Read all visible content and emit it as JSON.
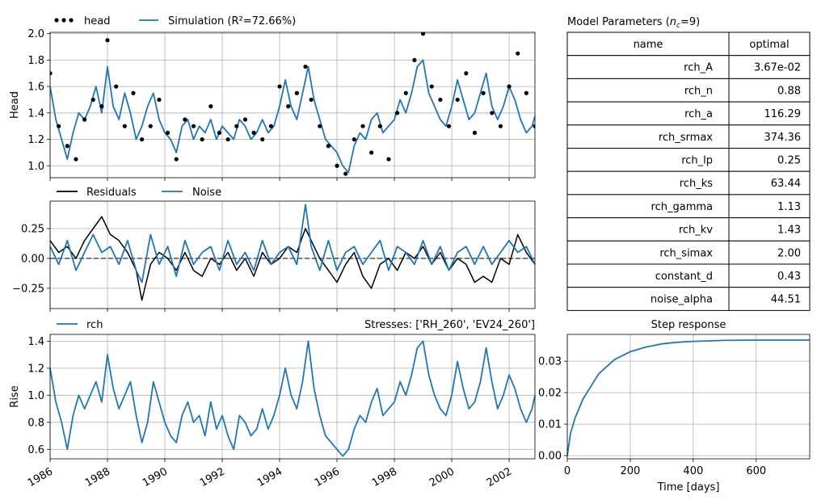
{
  "colors": {
    "head": "#000000",
    "simulation": "#1f77b4",
    "residuals": "#000000",
    "noise": "#1f77b4",
    "rch": "#1f77b4",
    "step": "#1f77b4",
    "grid": "#b0b0b0"
  },
  "chart_data": [
    {
      "id": "head",
      "type": "line",
      "ylabel": "Head",
      "ylim": [
        0.91,
        2.01
      ],
      "yticks": [
        "1.0",
        "1.2",
        "1.4",
        "1.6",
        "1.8",
        "2.0"
      ],
      "grid": true,
      "legend": {
        "position": "top-left",
        "entries": [
          "head",
          "Simulation (R²=72.66%)"
        ]
      },
      "series": [
        {
          "name": "head",
          "style": "markers",
          "x": [
            1986.0,
            1986.3,
            1986.6,
            1986.9,
            1987.2,
            1987.5,
            1987.8,
            1988.0,
            1988.3,
            1988.6,
            1988.9,
            1989.2,
            1989.5,
            1989.8,
            1990.1,
            1990.4,
            1990.7,
            1991.0,
            1991.3,
            1991.6,
            1991.9,
            1992.2,
            1992.5,
            1992.8,
            1993.1,
            1993.4,
            1993.7,
            1994.0,
            1994.3,
            1994.6,
            1994.9,
            1995.1,
            1995.4,
            1995.7,
            1996.0,
            1996.3,
            1996.6,
            1996.9,
            1997.2,
            1997.5,
            1997.8,
            1998.1,
            1998.4,
            1998.7,
            1999.0,
            1999.3,
            1999.6,
            1999.9,
            2000.2,
            2000.5,
            2000.8,
            2001.1,
            2001.4,
            2001.7,
            2002.0,
            2002.3,
            2002.6,
            2002.9
          ],
          "y": [
            1.7,
            1.3,
            1.15,
            1.05,
            1.35,
            1.5,
            1.45,
            1.95,
            1.6,
            1.3,
            1.55,
            1.2,
            1.3,
            1.5,
            1.25,
            1.05,
            1.35,
            1.3,
            1.2,
            1.45,
            1.25,
            1.2,
            1.3,
            1.35,
            1.25,
            1.2,
            1.3,
            1.6,
            1.45,
            1.55,
            1.75,
            1.5,
            1.3,
            1.15,
            1.0,
            0.94,
            1.2,
            1.3,
            1.1,
            1.3,
            1.05,
            1.4,
            1.55,
            1.8,
            2.0,
            1.6,
            1.5,
            1.3,
            1.5,
            1.7,
            1.25,
            1.55,
            1.4,
            1.3,
            1.6,
            1.85,
            1.55,
            1.3
          ]
        },
        {
          "name": "Simulation",
          "style": "line",
          "x": [
            1986.0,
            1986.2,
            1986.4,
            1986.6,
            1986.8,
            1987.0,
            1987.2,
            1987.4,
            1987.6,
            1987.8,
            1988.0,
            1988.2,
            1988.4,
            1988.6,
            1988.8,
            1989.0,
            1989.2,
            1989.4,
            1989.6,
            1989.8,
            1990.0,
            1990.2,
            1990.4,
            1990.6,
            1990.8,
            1991.0,
            1991.2,
            1991.4,
            1991.6,
            1991.8,
            1992.0,
            1992.2,
            1992.4,
            1992.6,
            1992.8,
            1993.0,
            1993.2,
            1993.4,
            1993.6,
            1993.8,
            1994.0,
            1994.2,
            1994.4,
            1994.6,
            1994.8,
            1995.0,
            1995.2,
            1995.4,
            1995.6,
            1995.8,
            1996.0,
            1996.2,
            1996.4,
            1996.6,
            1996.8,
            1997.0,
            1997.2,
            1997.4,
            1997.6,
            1997.8,
            1998.0,
            1998.2,
            1998.4,
            1998.6,
            1998.8,
            1999.0,
            1999.2,
            1999.4,
            1999.6,
            1999.8,
            2000.0,
            2000.2,
            2000.4,
            2000.6,
            2000.8,
            2001.0,
            2001.2,
            2001.4,
            2001.6,
            2001.8,
            2002.0,
            2002.2,
            2002.4,
            2002.6,
            2002.8,
            2003.0
          ],
          "y": [
            1.6,
            1.35,
            1.2,
            1.05,
            1.25,
            1.4,
            1.35,
            1.45,
            1.6,
            1.4,
            1.75,
            1.45,
            1.35,
            1.55,
            1.4,
            1.2,
            1.3,
            1.45,
            1.55,
            1.35,
            1.25,
            1.2,
            1.1,
            1.3,
            1.35,
            1.2,
            1.3,
            1.25,
            1.35,
            1.2,
            1.3,
            1.25,
            1.2,
            1.35,
            1.3,
            1.2,
            1.25,
            1.35,
            1.25,
            1.3,
            1.45,
            1.65,
            1.45,
            1.35,
            1.55,
            1.75,
            1.5,
            1.35,
            1.2,
            1.15,
            1.1,
            1.0,
            0.95,
            1.15,
            1.25,
            1.2,
            1.35,
            1.4,
            1.25,
            1.3,
            1.35,
            1.5,
            1.4,
            1.55,
            1.75,
            1.8,
            1.55,
            1.45,
            1.35,
            1.3,
            1.45,
            1.65,
            1.5,
            1.35,
            1.4,
            1.55,
            1.7,
            1.45,
            1.35,
            1.45,
            1.6,
            1.5,
            1.35,
            1.25,
            1.3,
            1.45
          ]
        }
      ]
    },
    {
      "id": "residuals",
      "type": "line",
      "ylim": [
        -0.42,
        0.48
      ],
      "yticks": [
        "0.25",
        "0.00",
        "−0.25"
      ],
      "grid": true,
      "legend": {
        "position": "top-left",
        "entries": [
          "Residuals",
          "Noise"
        ]
      },
      "series": [
        {
          "name": "Residuals",
          "style": "line",
          "x": [
            1986.0,
            1986.3,
            1986.6,
            1986.9,
            1987.2,
            1987.5,
            1987.8,
            1988.1,
            1988.4,
            1988.7,
            1989.0,
            1989.2,
            1989.5,
            1989.8,
            1990.1,
            1990.4,
            1990.7,
            1991.0,
            1991.3,
            1991.6,
            1991.9,
            1992.2,
            1992.5,
            1992.8,
            1993.1,
            1993.4,
            1993.7,
            1994.0,
            1994.3,
            1994.6,
            1994.9,
            1995.1,
            1995.4,
            1995.7,
            1996.0,
            1996.3,
            1996.6,
            1996.9,
            1997.2,
            1997.5,
            1997.8,
            1998.1,
            1998.4,
            1998.7,
            1999.0,
            1999.3,
            1999.6,
            1999.9,
            2000.2,
            2000.5,
            2000.8,
            2001.1,
            2001.4,
            2001.7,
            2002.0,
            2002.3,
            2002.6,
            2002.9
          ],
          "y": [
            0.15,
            0.05,
            0.1,
            0.0,
            0.15,
            0.25,
            0.35,
            0.2,
            0.15,
            0.05,
            -0.1,
            -0.35,
            -0.05,
            0.05,
            0.0,
            -0.1,
            0.05,
            -0.1,
            -0.15,
            0.0,
            -0.05,
            0.05,
            -0.1,
            0.0,
            -0.15,
            0.05,
            -0.05,
            0.0,
            0.1,
            0.05,
            0.25,
            0.15,
            0.0,
            -0.1,
            -0.2,
            -0.05,
            0.05,
            -0.15,
            -0.25,
            -0.05,
            0.0,
            -0.1,
            0.05,
            0.0,
            0.1,
            -0.05,
            0.05,
            -0.1,
            0.0,
            -0.05,
            -0.2,
            -0.15,
            -0.2,
            0.0,
            -0.05,
            0.2,
            0.05,
            -0.05
          ]
        },
        {
          "name": "Noise",
          "style": "line",
          "x": [
            1986.0,
            1986.3,
            1986.6,
            1986.9,
            1987.2,
            1987.5,
            1987.8,
            1988.1,
            1988.4,
            1988.7,
            1989.0,
            1989.2,
            1989.5,
            1989.8,
            1990.1,
            1990.4,
            1990.7,
            1991.0,
            1991.3,
            1991.6,
            1991.9,
            1992.2,
            1992.5,
            1992.8,
            1993.1,
            1993.4,
            1993.7,
            1994.0,
            1994.3,
            1994.6,
            1994.9,
            1995.1,
            1995.4,
            1995.7,
            1996.0,
            1996.3,
            1996.6,
            1996.9,
            1997.2,
            1997.5,
            1997.8,
            1998.1,
            1998.4,
            1998.7,
            1999.0,
            1999.3,
            1999.6,
            1999.9,
            2000.2,
            2000.5,
            2000.8,
            2001.1,
            2001.4,
            2001.7,
            2002.0,
            2002.3,
            2002.6,
            2002.9
          ],
          "y": [
            0.1,
            -0.05,
            0.15,
            -0.1,
            0.05,
            0.2,
            0.05,
            0.1,
            -0.05,
            0.15,
            -0.1,
            -0.2,
            0.2,
            -0.05,
            0.1,
            -0.15,
            0.15,
            -0.05,
            0.05,
            0.1,
            -0.1,
            0.15,
            -0.05,
            0.05,
            -0.1,
            0.15,
            -0.05,
            0.05,
            0.1,
            -0.05,
            0.45,
            0.1,
            -0.1,
            0.15,
            -0.1,
            0.05,
            0.1,
            -0.05,
            0.05,
            0.15,
            -0.1,
            0.1,
            0.05,
            -0.05,
            0.15,
            -0.05,
            0.1,
            -0.1,
            0.05,
            0.1,
            -0.05,
            0.1,
            -0.05,
            0.05,
            0.15,
            0.05,
            0.1,
            -0.05
          ]
        }
      ]
    },
    {
      "id": "rch",
      "type": "line",
      "ylabel": "Rise",
      "title_right": "Stresses: ['RH_260', 'EV24_260']",
      "ylim": [
        0.53,
        1.45
      ],
      "yticks": [
        "0.6",
        "0.8",
        "1.0",
        "1.2",
        "1.4"
      ],
      "xlim": [
        1986,
        2002.9
      ],
      "xticks": [
        "1986",
        "1988",
        "1990",
        "1992",
        "1994",
        "1996",
        "1998",
        "2000",
        "2002"
      ],
      "grid": true,
      "legend": {
        "position": "top-left",
        "entries": [
          "rch"
        ]
      },
      "series": [
        {
          "name": "rch",
          "style": "line",
          "x": [
            1986.0,
            1986.2,
            1986.4,
            1986.6,
            1986.8,
            1987.0,
            1987.2,
            1987.4,
            1987.6,
            1987.8,
            1988.0,
            1988.2,
            1988.4,
            1988.6,
            1988.8,
            1989.0,
            1989.2,
            1989.4,
            1989.6,
            1989.8,
            1990.0,
            1990.2,
            1990.4,
            1990.6,
            1990.8,
            1991.0,
            1991.2,
            1991.4,
            1991.6,
            1991.8,
            1992.0,
            1992.2,
            1992.4,
            1992.6,
            1992.8,
            1993.0,
            1993.2,
            1993.4,
            1993.6,
            1993.8,
            1994.0,
            1994.2,
            1994.4,
            1994.6,
            1994.8,
            1995.0,
            1995.2,
            1995.4,
            1995.6,
            1995.8,
            1996.0,
            1996.2,
            1996.4,
            1996.6,
            1996.8,
            1997.0,
            1997.2,
            1997.4,
            1997.6,
            1997.8,
            1998.0,
            1998.2,
            1998.4,
            1998.6,
            1998.8,
            1999.0,
            1999.2,
            1999.4,
            1999.6,
            1999.8,
            2000.0,
            2000.2,
            2000.4,
            2000.6,
            2000.8,
            2001.0,
            2001.2,
            2001.4,
            2001.6,
            2001.8,
            2002.0,
            2002.2,
            2002.4,
            2002.6,
            2002.8,
            2002.9
          ],
          "y": [
            1.2,
            0.95,
            0.8,
            0.6,
            0.85,
            1.0,
            0.9,
            1.0,
            1.1,
            0.95,
            1.3,
            1.05,
            0.9,
            1.0,
            1.1,
            0.85,
            0.65,
            0.8,
            1.1,
            0.95,
            0.8,
            0.7,
            0.65,
            0.85,
            0.95,
            0.8,
            0.85,
            0.7,
            0.95,
            0.75,
            0.85,
            0.7,
            0.6,
            0.85,
            0.8,
            0.7,
            0.75,
            0.9,
            0.75,
            0.85,
            1.0,
            1.2,
            1.0,
            0.9,
            1.1,
            1.4,
            1.05,
            0.85,
            0.7,
            0.65,
            0.6,
            0.55,
            0.6,
            0.75,
            0.85,
            0.8,
            0.95,
            1.05,
            0.85,
            0.9,
            0.95,
            1.1,
            1.0,
            1.15,
            1.35,
            1.4,
            1.15,
            1.0,
            0.9,
            0.85,
            1.0,
            1.25,
            1.05,
            0.9,
            0.95,
            1.1,
            1.35,
            1.1,
            0.9,
            1.0,
            1.15,
            1.05,
            0.9,
            0.8,
            0.9,
            1.0
          ]
        }
      ]
    },
    {
      "id": "step",
      "type": "line",
      "title": "Step response",
      "xlabel": "Time [days]",
      "xlim": [
        0,
        770
      ],
      "xticks": [
        "0",
        "200",
        "400",
        "600"
      ],
      "ylim": [
        -0.001,
        0.0385
      ],
      "yticks": [
        "0.00",
        "0.01",
        "0.02",
        "0.03"
      ],
      "grid": true,
      "series": [
        {
          "name": "Step response",
          "style": "line",
          "x": [
            0,
            10,
            25,
            50,
            75,
            100,
            150,
            200,
            250,
            300,
            350,
            400,
            500,
            600,
            700,
            770
          ],
          "y": [
            0.0,
            0.007,
            0.012,
            0.018,
            0.022,
            0.026,
            0.0305,
            0.033,
            0.0345,
            0.0355,
            0.036,
            0.0363,
            0.0366,
            0.0367,
            0.0367,
            0.0367
          ]
        }
      ]
    },
    {
      "id": "params",
      "type": "table",
      "title": "Model Parameters (n_c=9)",
      "columns": [
        "name",
        "optimal"
      ],
      "rows": [
        [
          "rch_A",
          "3.67e-02"
        ],
        [
          "rch_n",
          "0.88"
        ],
        [
          "rch_a",
          "116.29"
        ],
        [
          "rch_srmax",
          "374.36"
        ],
        [
          "rch_lp",
          "0.25"
        ],
        [
          "rch_ks",
          "63.44"
        ],
        [
          "rch_gamma",
          "1.13"
        ],
        [
          "rch_kv",
          "1.43"
        ],
        [
          "rch_simax",
          "2.00"
        ],
        [
          "constant_d",
          "0.43"
        ],
        [
          "noise_alpha",
          "44.51"
        ]
      ]
    }
  ]
}
